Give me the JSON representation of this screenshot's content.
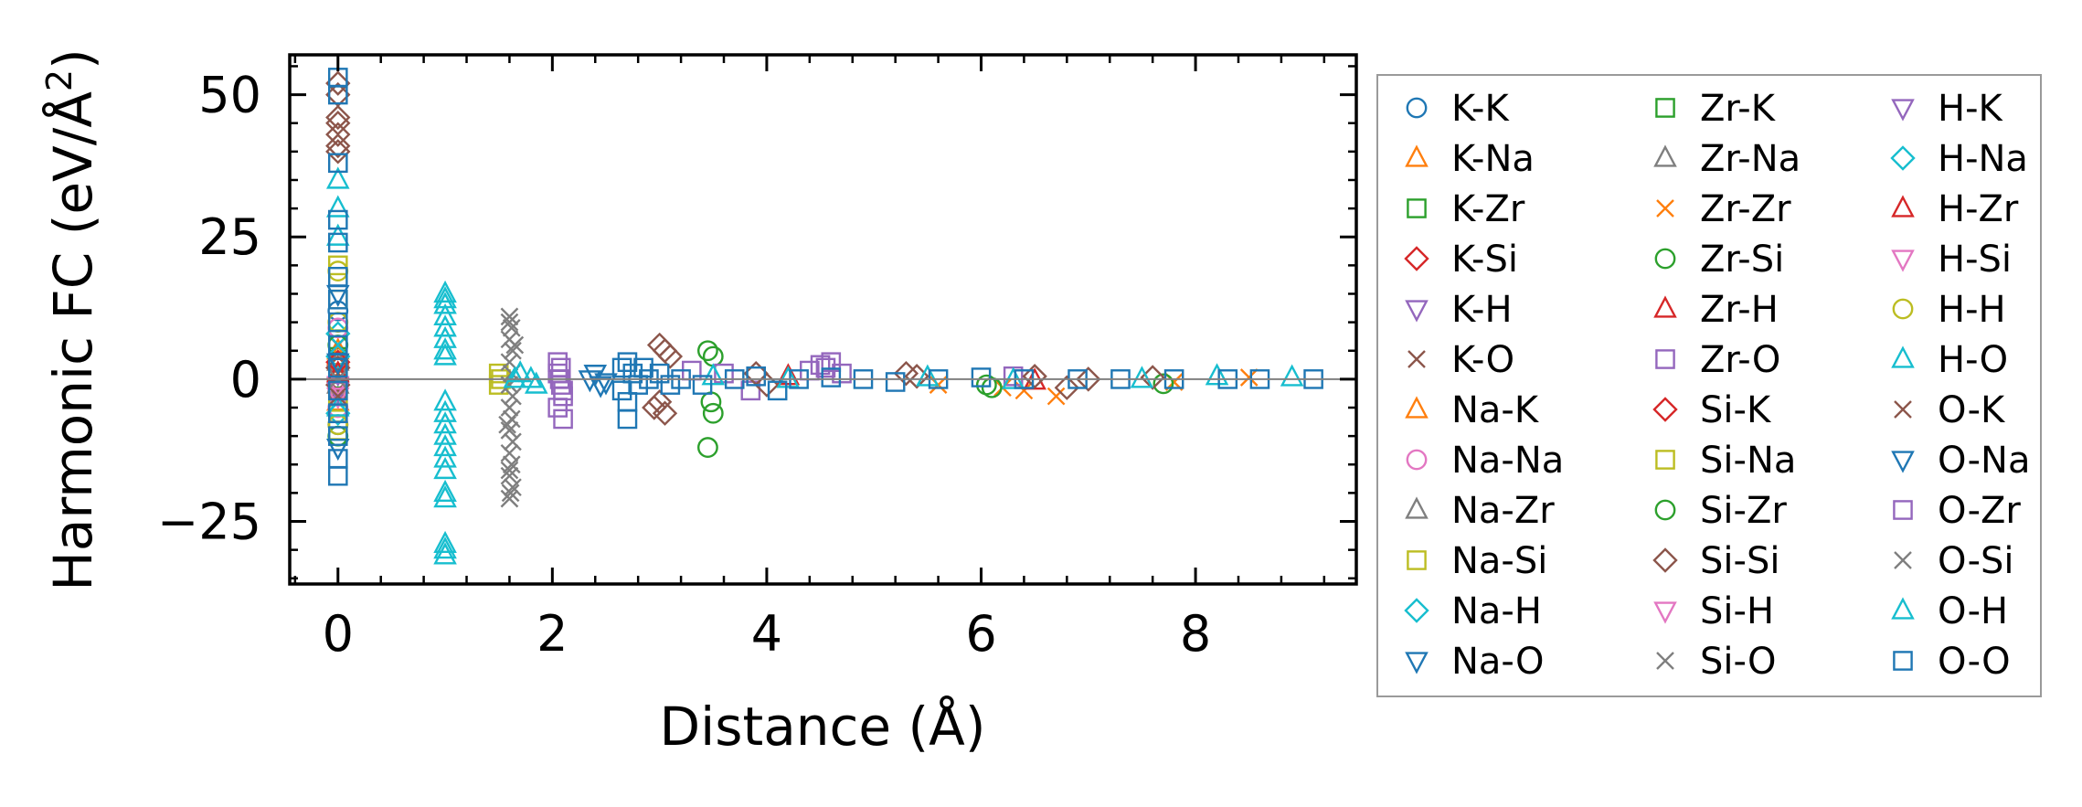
{
  "chart_data": {
    "type": "scatter",
    "title": "",
    "xlabel": "Distance (Å)",
    "ylabel": "Harmonic FC (eV/Å²)",
    "ylabel_parts": {
      "prefix": "Harmonic FC (eV/Å",
      "exponent": "2",
      "suffix": ")"
    },
    "xlim": [
      -0.45,
      9.5
    ],
    "ylim": [
      -36,
      57
    ],
    "xticks": [
      0,
      2,
      4,
      6,
      8
    ],
    "xtick_labels": [
      "0",
      "2",
      "4",
      "6",
      "8"
    ],
    "yticks": [
      -25,
      0,
      25,
      50
    ],
    "ytick_labels": [
      "−25",
      "0",
      "25",
      "50"
    ],
    "zero_line": true,
    "grid": false,
    "legend_position": "outside-right",
    "series": [
      {
        "name": "K-K",
        "marker": "circle",
        "color": "#1f77b4",
        "points": [
          [
            0,
            -8
          ],
          [
            0,
            12
          ],
          [
            0,
            3
          ],
          [
            0,
            -2
          ]
        ]
      },
      {
        "name": "K-Na",
        "marker": "triangle-up",
        "color": "#ff7f0e",
        "points": [
          [
            0,
            5
          ],
          [
            0,
            -4
          ]
        ]
      },
      {
        "name": "K-Zr",
        "marker": "square",
        "color": "#2ca02c",
        "points": [
          [
            0,
            7
          ],
          [
            0,
            -3
          ]
        ]
      },
      {
        "name": "K-Si",
        "marker": "diamond",
        "color": "#d62728",
        "points": [
          [
            0,
            2
          ],
          [
            0,
            -1
          ]
        ]
      },
      {
        "name": "K-H",
        "marker": "triangle-down",
        "color": "#9467bd",
        "points": [
          [
            0,
            1
          ]
        ]
      },
      {
        "name": "K-O",
        "marker": "x",
        "color": "#8c564b",
        "points": [
          [
            0,
            -2
          ],
          [
            0,
            6
          ]
        ]
      },
      {
        "name": "Na-K",
        "marker": "triangle-up",
        "color": "#ff7f0e",
        "points": [
          [
            0,
            4
          ]
        ]
      },
      {
        "name": "Na-Na",
        "marker": "circle",
        "color": "#e377c2",
        "points": [
          [
            0,
            9
          ],
          [
            0,
            -5
          ]
        ]
      },
      {
        "name": "Na-Zr",
        "marker": "triangle-up",
        "color": "#7f7f7f",
        "points": [
          [
            0,
            3
          ]
        ]
      },
      {
        "name": "Na-Si",
        "marker": "square",
        "color": "#bcbd22",
        "points": [
          [
            0,
            20
          ],
          [
            0,
            -9
          ],
          [
            0,
            14
          ],
          [
            1.5,
            1
          ],
          [
            1.5,
            -1
          ],
          [
            1.52,
            0
          ]
        ]
      },
      {
        "name": "Na-H",
        "marker": "diamond",
        "color": "#17becf",
        "points": [
          [
            0,
            8
          ],
          [
            0,
            -6
          ]
        ]
      },
      {
        "name": "Na-O",
        "marker": "triangle-down",
        "color": "#1f77b4",
        "points": [
          [
            0,
            -12
          ],
          [
            0,
            15
          ],
          [
            2.35,
            0
          ],
          [
            2.45,
            -1
          ]
        ]
      },
      {
        "name": "Zr-K",
        "marker": "square",
        "color": "#2ca02c",
        "points": [
          [
            0,
            2
          ]
        ]
      },
      {
        "name": "Zr-Na",
        "marker": "triangle-up",
        "color": "#7f7f7f",
        "points": [
          [
            0,
            -1
          ]
        ]
      },
      {
        "name": "Zr-Zr",
        "marker": "x",
        "color": "#ff7f0e",
        "points": [
          [
            0,
            1
          ],
          [
            6.4,
            -2
          ],
          [
            6.7,
            -3
          ],
          [
            6.2,
            -1.5
          ],
          [
            5.6,
            -1
          ],
          [
            7.8,
            -0.5
          ],
          [
            8.5,
            0.3
          ]
        ]
      },
      {
        "name": "Zr-Si",
        "marker": "circle",
        "color": "#2ca02c",
        "points": [
          [
            3.45,
            5
          ],
          [
            3.5,
            4
          ],
          [
            3.48,
            -4
          ],
          [
            3.5,
            -6
          ],
          [
            3.45,
            -12
          ],
          [
            6.1,
            -1.5
          ],
          [
            6.05,
            -1
          ],
          [
            7.7,
            -0.8
          ]
        ]
      },
      {
        "name": "Zr-H",
        "marker": "triangle-up",
        "color": "#d62728",
        "points": [
          [
            4.2,
            0.5
          ],
          [
            6.5,
            -0.3
          ]
        ]
      },
      {
        "name": "Zr-O",
        "marker": "square",
        "color": "#9467bd",
        "points": [
          [
            2.05,
            1
          ],
          [
            2.08,
            -1
          ],
          [
            2.1,
            -3
          ],
          [
            2.05,
            -5
          ],
          [
            2.1,
            -7
          ],
          [
            2.08,
            2
          ],
          [
            2.07,
            0
          ],
          [
            2.1,
            -2
          ],
          [
            4.4,
            1.5
          ],
          [
            4.5,
            2.5
          ],
          [
            4.6,
            3
          ],
          [
            4.7,
            1
          ],
          [
            3.3,
            1.5
          ],
          [
            3.6,
            1
          ],
          [
            3.85,
            -2
          ],
          [
            6.3,
            0.5
          ]
        ]
      },
      {
        "name": "Si-K",
        "marker": "diamond",
        "color": "#d62728",
        "points": [
          [
            0,
            3
          ]
        ]
      },
      {
        "name": "Si-Na",
        "marker": "square",
        "color": "#bcbd22",
        "points": [
          [
            0,
            -4
          ]
        ]
      },
      {
        "name": "Si-Zr",
        "marker": "circle",
        "color": "#2ca02c",
        "points": [
          [
            0,
            6
          ],
          [
            0,
            -10
          ]
        ]
      },
      {
        "name": "Si-Si",
        "marker": "diamond",
        "color": "#8c564b",
        "points": [
          [
            0,
            40
          ],
          [
            0,
            41
          ],
          [
            0,
            43
          ],
          [
            0,
            45
          ],
          [
            0,
            46
          ],
          [
            0,
            50
          ],
          [
            0,
            52
          ],
          [
            0,
            0
          ],
          [
            0,
            -1
          ],
          [
            0,
            2
          ],
          [
            3.0,
            6
          ],
          [
            3.05,
            5
          ],
          [
            3.0,
            -4
          ],
          [
            3.05,
            -6
          ],
          [
            2.95,
            -5
          ],
          [
            3.1,
            4
          ],
          [
            3.9,
            1
          ],
          [
            4.0,
            -1
          ],
          [
            5.3,
            1
          ],
          [
            5.4,
            0.5
          ],
          [
            6.5,
            0.5
          ],
          [
            6.8,
            -1.5
          ],
          [
            7.0,
            0
          ],
          [
            7.6,
            0.3
          ]
        ]
      },
      {
        "name": "Si-H",
        "marker": "triangle-down",
        "color": "#e377c2",
        "points": [
          [
            0,
            -1
          ]
        ]
      },
      {
        "name": "Si-O",
        "marker": "x",
        "color": "#7f7f7f",
        "points": [
          [
            1.6,
            11
          ],
          [
            1.62,
            9
          ],
          [
            1.6,
            7
          ],
          [
            1.63,
            5
          ],
          [
            1.6,
            3
          ],
          [
            1.62,
            1
          ],
          [
            1.6,
            -1
          ],
          [
            1.63,
            -3
          ],
          [
            1.6,
            -5
          ],
          [
            1.62,
            -7
          ],
          [
            1.6,
            -9
          ],
          [
            1.63,
            -11
          ],
          [
            1.6,
            -13
          ],
          [
            1.62,
            -15
          ],
          [
            1.6,
            -17
          ],
          [
            1.63,
            -19
          ],
          [
            1.6,
            -21
          ],
          [
            1.65,
            6
          ],
          [
            1.58,
            -8
          ]
        ]
      },
      {
        "name": "H-K",
        "marker": "triangle-down",
        "color": "#9467bd",
        "points": [
          [
            0,
            -2
          ]
        ]
      },
      {
        "name": "H-Na",
        "marker": "diamond",
        "color": "#17becf",
        "points": [
          [
            0,
            4
          ]
        ]
      },
      {
        "name": "H-Zr",
        "marker": "triangle-up",
        "color": "#d62728",
        "points": [
          [
            0,
            1
          ]
        ]
      },
      {
        "name": "H-Si",
        "marker": "triangle-down",
        "color": "#e377c2",
        "points": [
          [
            0,
            -3
          ]
        ]
      },
      {
        "name": "H-H",
        "marker": "circle",
        "color": "#bcbd22",
        "points": [
          [
            0,
            19
          ],
          [
            0,
            -8
          ],
          [
            0,
            10
          ]
        ]
      },
      {
        "name": "H-O",
        "marker": "triangle-up",
        "color": "#17becf",
        "points": [
          [
            0,
            30
          ],
          [
            0,
            -5
          ],
          [
            0,
            35
          ],
          [
            1.0,
            15
          ],
          [
            1.0,
            13
          ],
          [
            1.0,
            11
          ],
          [
            1.0,
            9
          ],
          [
            1.0,
            7
          ],
          [
            1.0,
            5
          ],
          [
            1.0,
            4
          ],
          [
            1.0,
            -4
          ],
          [
            1.0,
            -6
          ],
          [
            1.0,
            -8
          ],
          [
            1.0,
            -10
          ],
          [
            1.0,
            -12
          ],
          [
            1.0,
            -14
          ],
          [
            1.0,
            -16
          ],
          [
            1.0,
            -20
          ],
          [
            1.0,
            -21
          ],
          [
            1.0,
            -29
          ],
          [
            1.0,
            -31
          ],
          [
            1.65,
            0
          ],
          [
            1.7,
            1
          ],
          [
            1.8,
            0
          ],
          [
            1.85,
            -1
          ],
          [
            3.5,
            0.5
          ],
          [
            4.2,
            0
          ],
          [
            5.5,
            0.3
          ],
          [
            6.3,
            -0.2
          ],
          [
            7.5,
            0
          ],
          [
            8.2,
            0.5
          ],
          [
            8.9,
            0.3
          ]
        ]
      },
      {
        "name": "O-K",
        "marker": "x",
        "color": "#8c564b",
        "points": [
          [
            0,
            -3
          ]
        ]
      },
      {
        "name": "O-Na",
        "marker": "triangle-down",
        "color": "#1f77b4",
        "points": [
          [
            0,
            3
          ],
          [
            2.4,
            1
          ],
          [
            2.5,
            -0.5
          ]
        ]
      },
      {
        "name": "O-Zr",
        "marker": "square",
        "color": "#9467bd",
        "points": [
          [
            0,
            -6
          ],
          [
            2.05,
            3
          ],
          [
            4.55,
            2
          ]
        ]
      },
      {
        "name": "O-Si",
        "marker": "x",
        "color": "#7f7f7f",
        "points": [
          [
            0,
            0
          ],
          [
            1.6,
            10
          ],
          [
            1.61,
            -20
          ],
          [
            1.6,
            -16
          ]
        ]
      },
      {
        "name": "O-H",
        "marker": "triangle-up",
        "color": "#17becf",
        "points": [
          [
            0,
            25
          ],
          [
            1.0,
            -30
          ],
          [
            1.0,
            14
          ]
        ]
      },
      {
        "name": "O-O",
        "marker": "square",
        "color": "#1f77b4",
        "points": [
          [
            0,
            53
          ],
          [
            0,
            50
          ],
          [
            0,
            38
          ],
          [
            0,
            28
          ],
          [
            0,
            24
          ],
          [
            0,
            18
          ],
          [
            0,
            14
          ],
          [
            0,
            10
          ],
          [
            0,
            6
          ],
          [
            0,
            2
          ],
          [
            0,
            -2
          ],
          [
            0,
            -6
          ],
          [
            0,
            -10
          ],
          [
            0,
            -14
          ],
          [
            0,
            -17
          ],
          [
            2.7,
            3
          ],
          [
            2.7,
            -7
          ],
          [
            2.65,
            2
          ],
          [
            2.65,
            -2
          ],
          [
            2.7,
            -4
          ],
          [
            2.75,
            1
          ],
          [
            2.8,
            -1
          ],
          [
            2.85,
            2
          ],
          [
            2.9,
            0
          ],
          [
            3.0,
            1
          ],
          [
            3.1,
            -1
          ],
          [
            3.2,
            0
          ],
          [
            3.4,
            -1
          ],
          [
            3.7,
            0
          ],
          [
            3.9,
            0.5
          ],
          [
            4.1,
            -2
          ],
          [
            4.3,
            0
          ],
          [
            4.6,
            0.3
          ],
          [
            4.9,
            0
          ],
          [
            5.2,
            -0.5
          ],
          [
            5.6,
            0
          ],
          [
            6.0,
            0.3
          ],
          [
            6.4,
            0
          ],
          [
            6.9,
            0
          ],
          [
            7.3,
            0
          ],
          [
            7.8,
            0
          ],
          [
            8.3,
            0
          ],
          [
            8.6,
            0
          ],
          [
            9.1,
            0
          ]
        ]
      }
    ]
  }
}
